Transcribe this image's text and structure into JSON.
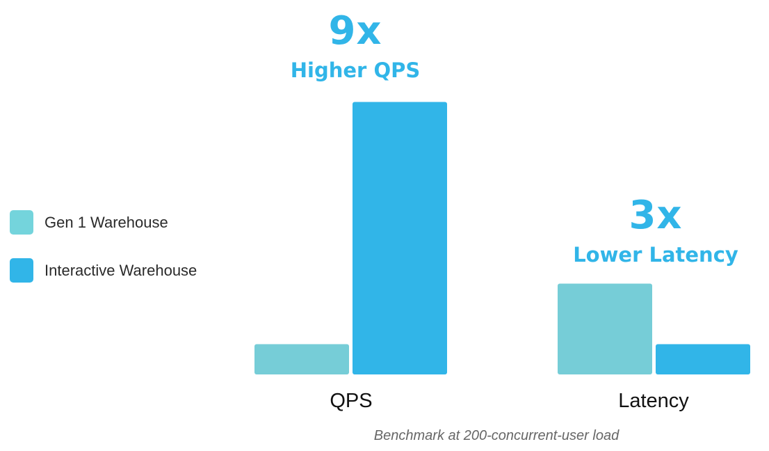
{
  "chart_data": {
    "type": "bar",
    "title": "",
    "categories": [
      "QPS",
      "Latency"
    ],
    "series": [
      {
        "name": "Gen 1 Warehouse",
        "color": "#76CDD7",
        "values": [
          1,
          3
        ]
      },
      {
        "name": "Interactive Warehouse",
        "color": "#31B5E8",
        "values": [
          9,
          1
        ]
      }
    ],
    "annotations": [
      {
        "big": "9x",
        "small": "Higher QPS",
        "category": "QPS"
      },
      {
        "big": "3x",
        "small": "Lower Latency",
        "category": "Latency"
      }
    ],
    "caption": "Benchmark at 200-concurrent-user load",
    "legend_position": "left",
    "grid": false,
    "xlabel": "",
    "ylabel": "",
    "units": "relative"
  }
}
